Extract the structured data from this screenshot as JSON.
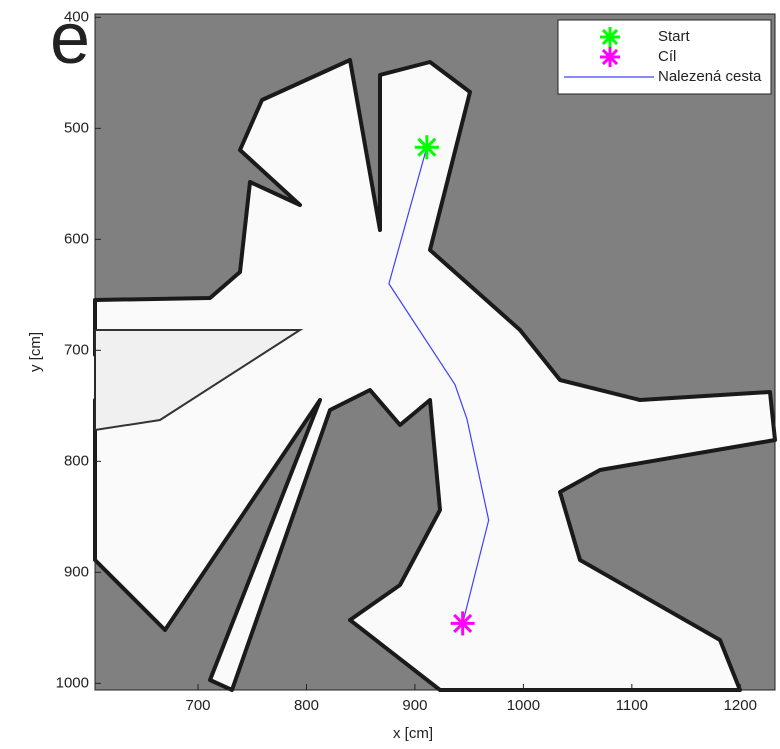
{
  "fragment": "e",
  "chart_data": {
    "type": "line",
    "xlabel": "x [cm]",
    "ylabel": "y [cm]",
    "xlim": [
      605,
      1232
    ],
    "ylim": [
      397,
      1006
    ],
    "y_reversed": true,
    "xticks": [
      700,
      800,
      900,
      1000,
      1100,
      1200
    ],
    "yticks": [
      400,
      500,
      600,
      700,
      800,
      900,
      1000
    ],
    "legend": "upper right",
    "markers": [
      {
        "name": "Start",
        "color": "#00ff00",
        "x": 911,
        "y": 517
      },
      {
        "name": "Cíl",
        "color": "#ff00ff",
        "x": 944,
        "y": 946
      }
    ],
    "series": [
      {
        "name": "Nalezená cesta",
        "color": "#4040ff",
        "x": [
          911,
          876,
          937,
          948,
          968,
          944
        ],
        "values": [
          517,
          640,
          731,
          762,
          853,
          946
        ]
      }
    ]
  }
}
